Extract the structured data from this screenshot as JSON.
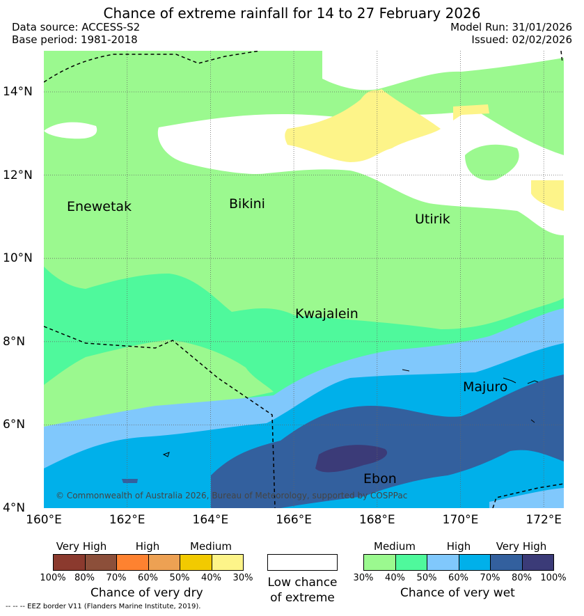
{
  "title": "Chance of extreme rainfall for 14 to 27 February 2026",
  "meta": {
    "data_source": "Data source: ACCESS-S2",
    "base_period": "Base period: 1981-2018",
    "model_run": "Model Run: 31/01/2026",
    "issued": "Issued: 02/02/2026"
  },
  "axes": {
    "x_ticks": [
      "160°E",
      "162°E",
      "164°E",
      "166°E",
      "168°E",
      "170°E",
      "172°E"
    ],
    "y_ticks": [
      "14°N",
      "12°N",
      "10°N",
      "8°N",
      "6°N",
      "4°N"
    ]
  },
  "places": {
    "enewetak": "Enewetak",
    "bikini": "Bikini",
    "utirik": "Utirik",
    "kwajalein": "Kwajalein",
    "majuro": "Majuro",
    "ebon": "Ebon"
  },
  "copyright": "© Commonwealth of Australia 2026, Bureau of Meteorology, supported by COSPPac",
  "legend": {
    "dry": {
      "headers": [
        "Very High",
        "High",
        "Medium"
      ],
      "pcts": [
        "100%",
        "80%",
        "70%",
        "60%",
        "50%",
        "40%",
        "30%"
      ],
      "title": "Chance of very dry",
      "colors": [
        "#8b3a2e",
        "#8c4f3a",
        "#fe8230",
        "#eda153",
        "#f2ca00",
        "#fdf489"
      ]
    },
    "none": {
      "title_line1": "Low chance",
      "title_line2": "of extreme",
      "color": "#ffffff"
    },
    "wet": {
      "headers": [
        "Medium",
        "High",
        "Very High"
      ],
      "pcts": [
        "30%",
        "40%",
        "50%",
        "60%",
        "70%",
        "80%",
        "100%"
      ],
      "title": "Chance of very wet",
      "colors": [
        "#9bf98f",
        "#4ff99c",
        "#80c8fc",
        "#00b0ea",
        "#33609e",
        "#3b3b78"
      ]
    }
  },
  "eez_note": "--  --  -- EEZ border V11 (Flanders Marine Institute, 2019)."
}
